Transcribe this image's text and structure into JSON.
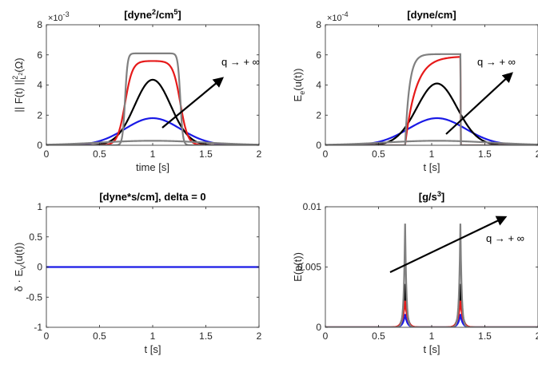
{
  "chart_data": [
    {
      "type": "line",
      "title": "[dyne²/cm⁵]",
      "title_parts": {
        "base": "[dyne",
        "sup1": "2",
        "mid": "/cm",
        "sup2": "5",
        "end": "]"
      },
      "xlabel": "time [s]",
      "ylabel": "|| F(t) ||²L²(Ω)",
      "ylabel_parts": {
        "base": "|| F(t) ||",
        "sup": "2",
        "sub": "L",
        "subsup": "2",
        "end": "(Ω)"
      },
      "xlim": [
        0,
        2
      ],
      "ylim": [
        0,
        8
      ],
      "y_exponent": "×10",
      "y_exponent_power": "-3",
      "xticks": [
        "0",
        "0.5",
        "1",
        "1.5",
        "2"
      ],
      "yticks": [
        "0",
        "2",
        "4",
        "6",
        "8"
      ],
      "annotation": "q → + ∞",
      "series": [
        {
          "kind": "gauss",
          "center": 1.0,
          "amp": 1.8,
          "width": 0.26,
          "color": "#1a1ae6"
        },
        {
          "kind": "gauss",
          "center": 1.0,
          "amp": 4.35,
          "width": 0.17,
          "color": "#000000"
        },
        {
          "kind": "rect",
          "x0": 0.74,
          "x1": 1.26,
          "amp": 5.6,
          "edge": 0.035,
          "color": "#e61a1a"
        },
        {
          "kind": "rect",
          "x0": 0.74,
          "x1": 1.26,
          "amp": 6.1,
          "edge": 0.012,
          "color": "#808080"
        },
        {
          "kind": "gauss",
          "center": 1.0,
          "amp": 0.3,
          "width": 0.5,
          "color": "#808080"
        }
      ]
    },
    {
      "type": "line",
      "title": "[dyne/cm]",
      "xlabel": "t [s]",
      "ylabel": "Ee(u(t))",
      "ylabel_parts": {
        "base": "E",
        "sub": "e",
        "end": "(u(t))"
      },
      "xlim": [
        0,
        2
      ],
      "ylim": [
        0,
        8
      ],
      "y_exponent": "×10",
      "y_exponent_power": "-4",
      "xticks": [
        "0",
        "0.5",
        "1",
        "1.5",
        "2"
      ],
      "yticks": [
        "0",
        "2",
        "4",
        "6",
        "8"
      ],
      "annotation": "q → + ∞",
      "series": [
        {
          "kind": "gauss",
          "center": 1.05,
          "amp": 1.8,
          "width": 0.27,
          "color": "#1a1ae6"
        },
        {
          "kind": "gauss",
          "center": 1.05,
          "amp": 4.1,
          "width": 0.19,
          "color": "#000000"
        },
        {
          "kind": "ramp",
          "x0": 0.75,
          "x1": 1.27,
          "amp": 5.9,
          "tau": 0.1,
          "color": "#e61a1a"
        },
        {
          "kind": "ramp",
          "x0": 0.75,
          "x1": 1.27,
          "amp": 6.05,
          "tau": 0.04,
          "color": "#808080"
        },
        {
          "kind": "gauss",
          "center": 1.05,
          "amp": 0.3,
          "width": 0.5,
          "color": "#808080"
        }
      ]
    },
    {
      "type": "line",
      "title": "[dyne*s/cm], delta = 0",
      "xlabel": "t [s]",
      "ylabel": "δ · EV(u(t))",
      "ylabel_parts": {
        "base": "δ · E",
        "sub": "V",
        "end": "(u(t))"
      },
      "xlim": [
        0,
        2
      ],
      "ylim": [
        -1,
        1
      ],
      "xticks": [
        "0",
        "0.5",
        "1",
        "1.5",
        "2"
      ],
      "yticks": [
        "-1",
        "-0.5",
        "0",
        "0.5",
        "1"
      ],
      "series": [
        {
          "kind": "const",
          "value": 0,
          "color": "#1a1ae6"
        }
      ]
    },
    {
      "type": "line",
      "title": "[g/s³]",
      "title_parts": {
        "base": "[g/s",
        "sup1": "3",
        "end": "]"
      },
      "xlabel": "t [s]",
      "ylabel": "E(p(t))",
      "xlim": [
        0,
        2
      ],
      "ylim": [
        0,
        0.01
      ],
      "xticks": [
        "0",
        "0.5",
        "1",
        "1.5",
        "2"
      ],
      "yticks": [
        "0",
        "0.005",
        "0.01"
      ],
      "annotation": "q → + ∞",
      "series": [
        {
          "kind": "spikes",
          "peaks": [
            0.75,
            1.27
          ],
          "amp": 0.0011,
          "decay": 0.02,
          "color": "#1a1ae6"
        },
        {
          "kind": "spikes",
          "peaks": [
            0.75,
            1.27
          ],
          "amp": 0.0036,
          "decay": 0.018,
          "color": "#000000"
        },
        {
          "kind": "spikes",
          "peaks": [
            0.75,
            1.27
          ],
          "amp": 0.0022,
          "decay": 0.022,
          "color": "#e61a1a"
        },
        {
          "kind": "spikes",
          "peaks": [
            0.75,
            1.27
          ],
          "amp": 0.0086,
          "decay": 0.012,
          "color": "#808080"
        }
      ]
    }
  ]
}
